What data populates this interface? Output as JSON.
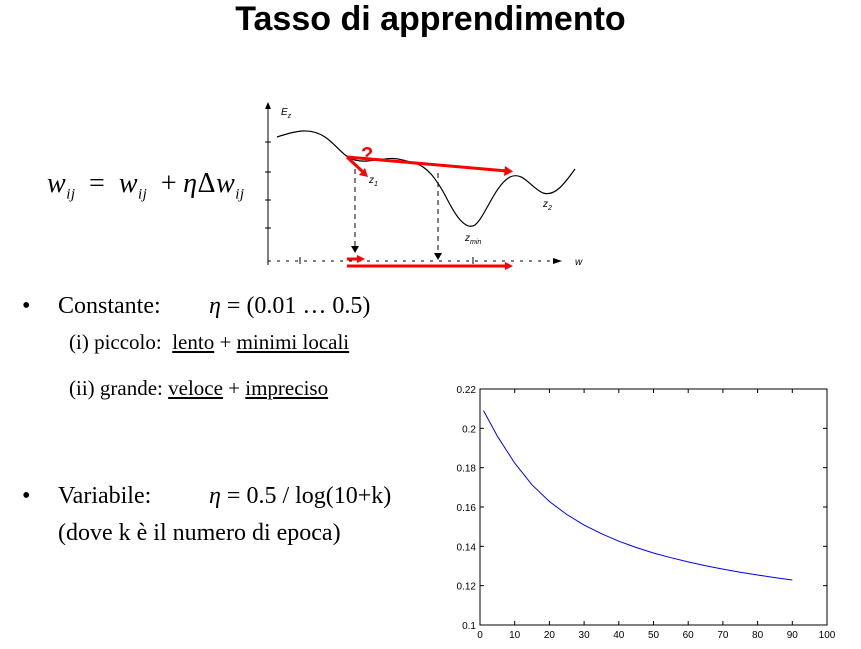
{
  "title": "Tasso di apprendimento",
  "formula": {
    "lhs": "w",
    "lhs_sub": "ij",
    "eq": "=",
    "rhs_w": "w",
    "rhs_w_sub": "ij",
    "plus": "+",
    "eta": "η",
    "delta": "Δ",
    "dw": "w",
    "dw_sub": "ij"
  },
  "sketch": {
    "y_label": "E",
    "y_label_sub": "z",
    "x_label": "w",
    "z1": "z",
    "z1_sub": "1",
    "z2": "z",
    "z2_sub": "2",
    "zmin": "z",
    "zmin_sub": "min",
    "question": "?",
    "accent_color": "#ff0000"
  },
  "bullets": {
    "mark": "•",
    "constant_label": "Constante:",
    "constant_eta": "η",
    "constant_formula": "= (0.01 … 0.5)",
    "small_prefix": "(i) piccolo:",
    "small_a": "lento",
    "small_plus": "+",
    "small_b": "minimi locali",
    "large_prefix": "(ii) grande:",
    "large_a": "veloce",
    "large_plus": "+",
    "large_b": "impreciso",
    "variable_label": "Variabile:",
    "variable_eta": "η",
    "variable_formula": "= 0.5 / log(10+k)",
    "variable_note": "(dove k è il numero di epoca)"
  },
  "chart_data": {
    "type": "line",
    "title": "",
    "xlabel": "",
    "ylabel": "",
    "xlim": [
      0,
      100
    ],
    "ylim": [
      0.1,
      0.22
    ],
    "x_ticks": [
      0,
      10,
      20,
      30,
      40,
      50,
      60,
      70,
      80,
      90,
      100
    ],
    "y_ticks": [
      0.1,
      0.12,
      0.14,
      0.16,
      0.18,
      0.2,
      0.22
    ],
    "x_tick_labels": [
      "0",
      "10",
      "20",
      "30",
      "40",
      "50",
      "60",
      "70",
      "80",
      "90",
      "100"
    ],
    "y_tick_labels": [
      "0.1",
      "0.12",
      "0.14",
      "0.16",
      "0.18",
      "0.2",
      "0.22"
    ],
    "series": [
      {
        "color": "#0000ff",
        "x": [
          1,
          5,
          10,
          15,
          20,
          25,
          30,
          35,
          40,
          45,
          50,
          55,
          60,
          65,
          70,
          75,
          80,
          85,
          90
        ],
        "y": [
          0.209,
          0.196,
          0.1823,
          0.1713,
          0.1628,
          0.1562,
          0.1508,
          0.1464,
          0.1426,
          0.1394,
          0.1366,
          0.1342,
          0.1321,
          0.1301,
          0.1284,
          0.1268,
          0.1254,
          0.1241,
          0.1229
        ]
      }
    ],
    "grid": false
  }
}
